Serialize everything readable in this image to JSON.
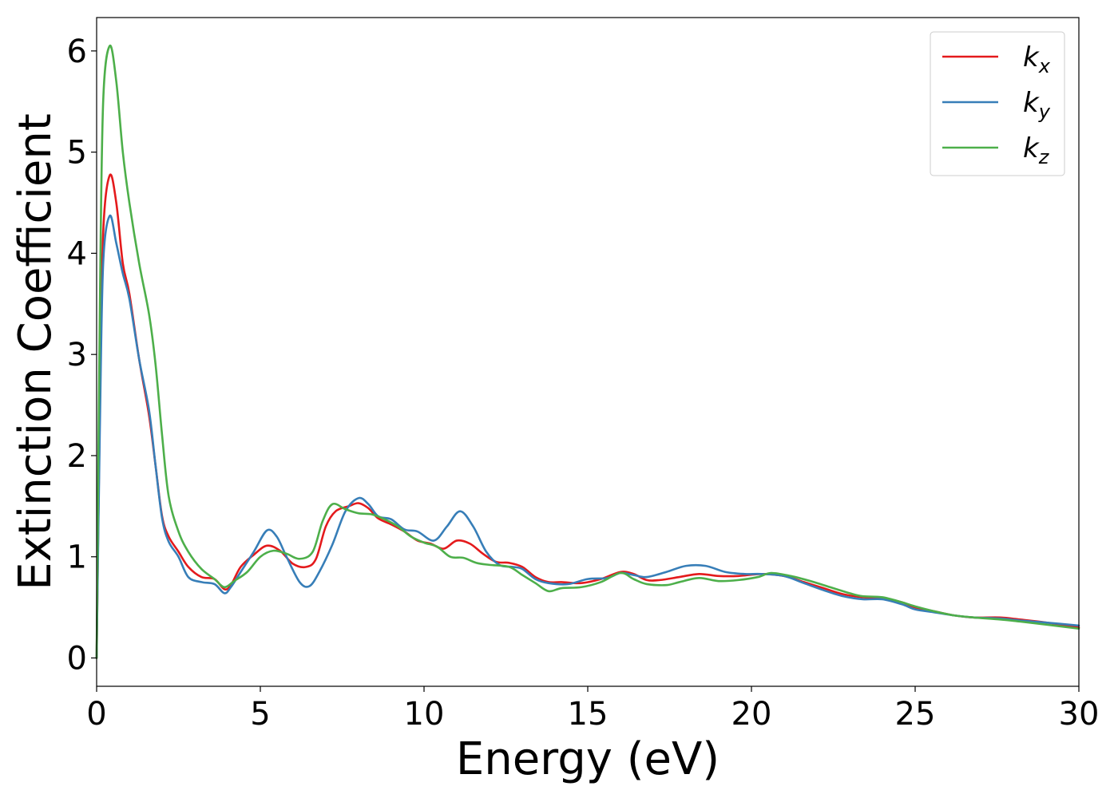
{
  "chart_data": {
    "type": "line",
    "title": "",
    "xlabel": "Energy (eV)",
    "ylabel": "Extinction Coefficient",
    "xlim": [
      0,
      30
    ],
    "ylim": [
      -0.28,
      6.33
    ],
    "xticks": [
      0,
      5,
      10,
      15,
      20,
      25,
      30
    ],
    "yticks": [
      0,
      1,
      2,
      3,
      4,
      5,
      6
    ],
    "grid": false,
    "legend_position": "top-right",
    "series": [
      {
        "name": "k_x",
        "label_main": "k",
        "label_sub": "x",
        "color": "#e41a1c",
        "points": [
          [
            0,
            0
          ],
          [
            0.1,
            2.5
          ],
          [
            0.2,
            4.2
          ],
          [
            0.4,
            4.77
          ],
          [
            0.6,
            4.5
          ],
          [
            0.8,
            3.9
          ],
          [
            1.0,
            3.6
          ],
          [
            1.3,
            2.95
          ],
          [
            1.6,
            2.4
          ],
          [
            1.8,
            1.9
          ],
          [
            2.0,
            1.4
          ],
          [
            2.2,
            1.2
          ],
          [
            2.5,
            1.05
          ],
          [
            2.8,
            0.9
          ],
          [
            3.2,
            0.8
          ],
          [
            3.6,
            0.78
          ],
          [
            3.9,
            0.68
          ],
          [
            4.1,
            0.72
          ],
          [
            4.4,
            0.9
          ],
          [
            4.8,
            1.02
          ],
          [
            5.2,
            1.11
          ],
          [
            5.6,
            1.06
          ],
          [
            6.0,
            0.93
          ],
          [
            6.4,
            0.9
          ],
          [
            6.7,
            0.98
          ],
          [
            7.0,
            1.3
          ],
          [
            7.3,
            1.45
          ],
          [
            7.7,
            1.5
          ],
          [
            8.0,
            1.53
          ],
          [
            8.3,
            1.48
          ],
          [
            8.6,
            1.38
          ],
          [
            9.0,
            1.32
          ],
          [
            9.4,
            1.25
          ],
          [
            9.8,
            1.16
          ],
          [
            10.2,
            1.13
          ],
          [
            10.6,
            1.08
          ],
          [
            11.0,
            1.16
          ],
          [
            11.4,
            1.13
          ],
          [
            11.8,
            1.03
          ],
          [
            12.2,
            0.95
          ],
          [
            12.6,
            0.94
          ],
          [
            13.0,
            0.9
          ],
          [
            13.4,
            0.8
          ],
          [
            13.8,
            0.75
          ],
          [
            14.2,
            0.75
          ],
          [
            14.8,
            0.74
          ],
          [
            15.4,
            0.78
          ],
          [
            16.0,
            0.85
          ],
          [
            16.4,
            0.83
          ],
          [
            16.8,
            0.77
          ],
          [
            17.2,
            0.77
          ],
          [
            17.8,
            0.8
          ],
          [
            18.4,
            0.83
          ],
          [
            19.0,
            0.81
          ],
          [
            19.6,
            0.81
          ],
          [
            20.3,
            0.83
          ],
          [
            21.0,
            0.81
          ],
          [
            21.6,
            0.75
          ],
          [
            22.2,
            0.69
          ],
          [
            22.8,
            0.63
          ],
          [
            23.4,
            0.6
          ],
          [
            24.0,
            0.59
          ],
          [
            24.6,
            0.55
          ],
          [
            25.0,
            0.5
          ],
          [
            25.6,
            0.46
          ],
          [
            26.2,
            0.42
          ],
          [
            26.8,
            0.4
          ],
          [
            27.6,
            0.4
          ],
          [
            28.2,
            0.38
          ],
          [
            29.0,
            0.35
          ],
          [
            30.0,
            0.3
          ]
        ]
      },
      {
        "name": "k_y",
        "label_main": "k",
        "label_sub": "y",
        "color": "#377eb8",
        "points": [
          [
            0,
            0
          ],
          [
            0.1,
            2.3
          ],
          [
            0.2,
            3.9
          ],
          [
            0.4,
            4.37
          ],
          [
            0.6,
            4.1
          ],
          [
            0.8,
            3.8
          ],
          [
            1.0,
            3.55
          ],
          [
            1.3,
            2.95
          ],
          [
            1.6,
            2.45
          ],
          [
            1.8,
            1.9
          ],
          [
            2.0,
            1.38
          ],
          [
            2.2,
            1.15
          ],
          [
            2.5,
            1.0
          ],
          [
            2.8,
            0.8
          ],
          [
            3.2,
            0.75
          ],
          [
            3.6,
            0.73
          ],
          [
            3.9,
            0.64
          ],
          [
            4.1,
            0.7
          ],
          [
            4.4,
            0.85
          ],
          [
            4.8,
            1.05
          ],
          [
            5.2,
            1.26
          ],
          [
            5.5,
            1.2
          ],
          [
            5.8,
            1.0
          ],
          [
            6.2,
            0.75
          ],
          [
            6.5,
            0.71
          ],
          [
            6.8,
            0.85
          ],
          [
            7.2,
            1.12
          ],
          [
            7.6,
            1.45
          ],
          [
            8.0,
            1.58
          ],
          [
            8.3,
            1.52
          ],
          [
            8.6,
            1.4
          ],
          [
            9.0,
            1.37
          ],
          [
            9.4,
            1.27
          ],
          [
            9.8,
            1.25
          ],
          [
            10.3,
            1.16
          ],
          [
            10.7,
            1.3
          ],
          [
            11.1,
            1.45
          ],
          [
            11.5,
            1.3
          ],
          [
            11.9,
            1.05
          ],
          [
            12.3,
            0.92
          ],
          [
            12.7,
            0.9
          ],
          [
            13.0,
            0.88
          ],
          [
            13.4,
            0.78
          ],
          [
            13.8,
            0.74
          ],
          [
            14.4,
            0.73
          ],
          [
            15.0,
            0.78
          ],
          [
            15.6,
            0.79
          ],
          [
            16.0,
            0.84
          ],
          [
            16.4,
            0.82
          ],
          [
            16.8,
            0.8
          ],
          [
            17.4,
            0.85
          ],
          [
            18.0,
            0.91
          ],
          [
            18.6,
            0.91
          ],
          [
            19.2,
            0.85
          ],
          [
            19.8,
            0.83
          ],
          [
            20.3,
            0.83
          ],
          [
            21.0,
            0.81
          ],
          [
            21.6,
            0.74
          ],
          [
            22.2,
            0.67
          ],
          [
            22.8,
            0.61
          ],
          [
            23.4,
            0.58
          ],
          [
            24.0,
            0.58
          ],
          [
            24.6,
            0.53
          ],
          [
            25.0,
            0.48
          ],
          [
            25.6,
            0.45
          ],
          [
            26.2,
            0.42
          ],
          [
            26.8,
            0.4
          ],
          [
            27.6,
            0.39
          ],
          [
            28.2,
            0.37
          ],
          [
            29.0,
            0.35
          ],
          [
            30.0,
            0.32
          ]
        ]
      },
      {
        "name": "k_z",
        "label_main": "k",
        "label_sub": "z",
        "color": "#4daf4a",
        "points": [
          [
            0,
            0
          ],
          [
            0.1,
            3.5
          ],
          [
            0.2,
            5.5
          ],
          [
            0.4,
            6.05
          ],
          [
            0.6,
            5.7
          ],
          [
            0.8,
            5.0
          ],
          [
            1.0,
            4.5
          ],
          [
            1.3,
            3.9
          ],
          [
            1.6,
            3.4
          ],
          [
            1.8,
            2.9
          ],
          [
            2.0,
            2.2
          ],
          [
            2.2,
            1.6
          ],
          [
            2.5,
            1.25
          ],
          [
            2.8,
            1.05
          ],
          [
            3.2,
            0.88
          ],
          [
            3.6,
            0.78
          ],
          [
            3.9,
            0.7
          ],
          [
            4.2,
            0.76
          ],
          [
            4.6,
            0.85
          ],
          [
            5.0,
            1.0
          ],
          [
            5.4,
            1.06
          ],
          [
            5.8,
            1.03
          ],
          [
            6.2,
            0.98
          ],
          [
            6.6,
            1.05
          ],
          [
            6.9,
            1.35
          ],
          [
            7.2,
            1.52
          ],
          [
            7.6,
            1.47
          ],
          [
            8.0,
            1.43
          ],
          [
            8.4,
            1.42
          ],
          [
            8.8,
            1.37
          ],
          [
            9.2,
            1.3
          ],
          [
            9.6,
            1.2
          ],
          [
            10.0,
            1.14
          ],
          [
            10.4,
            1.1
          ],
          [
            10.8,
            1.0
          ],
          [
            11.2,
            0.99
          ],
          [
            11.6,
            0.94
          ],
          [
            12.0,
            0.92
          ],
          [
            12.6,
            0.9
          ],
          [
            13.0,
            0.82
          ],
          [
            13.4,
            0.74
          ],
          [
            13.8,
            0.66
          ],
          [
            14.2,
            0.69
          ],
          [
            14.8,
            0.7
          ],
          [
            15.4,
            0.75
          ],
          [
            16.0,
            0.84
          ],
          [
            16.4,
            0.78
          ],
          [
            16.8,
            0.73
          ],
          [
            17.4,
            0.72
          ],
          [
            17.8,
            0.75
          ],
          [
            18.4,
            0.79
          ],
          [
            19.0,
            0.76
          ],
          [
            19.6,
            0.77
          ],
          [
            20.2,
            0.8
          ],
          [
            20.6,
            0.84
          ],
          [
            21.2,
            0.81
          ],
          [
            21.8,
            0.76
          ],
          [
            22.4,
            0.7
          ],
          [
            23.0,
            0.64
          ],
          [
            23.4,
            0.61
          ],
          [
            24.0,
            0.6
          ],
          [
            24.6,
            0.55
          ],
          [
            25.0,
            0.51
          ],
          [
            25.6,
            0.46
          ],
          [
            26.2,
            0.42
          ],
          [
            26.8,
            0.4
          ],
          [
            27.6,
            0.38
          ],
          [
            28.2,
            0.36
          ],
          [
            29.0,
            0.33
          ],
          [
            30.0,
            0.29
          ]
        ]
      }
    ]
  }
}
